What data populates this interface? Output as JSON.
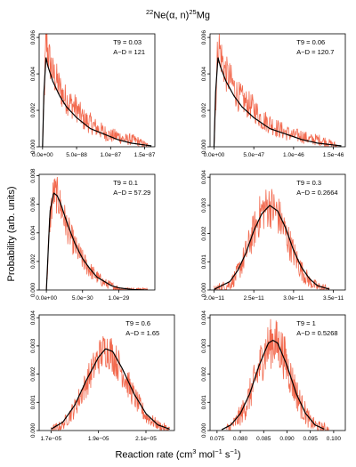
{
  "figure": {
    "title_main": "Ne(α, n)",
    "title_sup1": "22",
    "title_sup2": "25",
    "title_tail": "Mg",
    "ylabel": "Probability (arb. units)",
    "xlabel_main": "Reaction rate (cm",
    "xlabel_sup1": "3",
    "xlabel_mid": " mol",
    "xlabel_sup2": "−1",
    "xlabel_s": " s",
    "xlabel_sup3": "−1",
    "xlabel_end": ")"
  },
  "colors": {
    "histogram": "#f26a4f",
    "curve": "#000000",
    "axis": "#000000"
  },
  "chart_data": [
    {
      "type": "histogram",
      "annotation": [
        "T9 = 0.03",
        "A−D = 121"
      ],
      "xlim": [
        -0.05,
        1.65
      ],
      "ylim": [
        0,
        0.0062
      ],
      "xticks": [
        0,
        0.5,
        1.0,
        1.5
      ],
      "xtick_labels": [
        "0.0e+00",
        "5.0e−88",
        "1.0e−87",
        "1.5e−87"
      ],
      "yticks": [
        0,
        0.002,
        0.004,
        0.006
      ],
      "ytick_labels": [
        "0.000",
        "0.002",
        "0.004",
        "0.006"
      ],
      "hist_points": [
        [
          0.0,
          0.0
        ],
        [
          0.05,
          0.0058
        ],
        [
          0.1,
          0.0048
        ],
        [
          0.15,
          0.004
        ],
        [
          0.2,
          0.0037
        ],
        [
          0.3,
          0.0028
        ],
        [
          0.4,
          0.0024
        ],
        [
          0.5,
          0.0021
        ],
        [
          0.6,
          0.0015
        ],
        [
          0.7,
          0.0013
        ],
        [
          0.8,
          0.001
        ],
        [
          0.9,
          0.0008
        ],
        [
          1.0,
          0.0006
        ],
        [
          1.1,
          0.0006
        ],
        [
          1.2,
          0.0004
        ],
        [
          1.3,
          0.0004
        ],
        [
          1.4,
          0.0003
        ],
        [
          1.5,
          0.0001
        ],
        [
          1.55,
          0.0
        ]
      ],
      "fit_points": [
        [
          0.0,
          0.0
        ],
        [
          0.02,
          0.003
        ],
        [
          0.05,
          0.0049
        ],
        [
          0.08,
          0.0044
        ],
        [
          0.15,
          0.0036
        ],
        [
          0.25,
          0.0028
        ],
        [
          0.35,
          0.0022
        ],
        [
          0.5,
          0.0016
        ],
        [
          0.7,
          0.001
        ],
        [
          0.9,
          0.0007
        ],
        [
          1.1,
          0.0004
        ],
        [
          1.3,
          0.0002
        ],
        [
          1.5,
          0.0001
        ],
        [
          1.6,
          5e-05
        ]
      ],
      "hist_noise": 0.0009
    },
    {
      "type": "histogram",
      "annotation": [
        "T9 = 0.06",
        "A−D = 120.7"
      ],
      "xlim": [
        -0.05,
        1.65
      ],
      "ylim": [
        0,
        0.0062
      ],
      "xticks": [
        0,
        0.5,
        1.0,
        1.5
      ],
      "xtick_labels": [
        "0.0e+00",
        "5.0e−47",
        "1.0e−46",
        "1.5e−46"
      ],
      "yticks": [
        0,
        0.002,
        0.004,
        0.006
      ],
      "ytick_labels": [
        "0.000",
        "0.002",
        "0.004",
        "0.006"
      ],
      "hist_points": [
        [
          0.0,
          0.0
        ],
        [
          0.05,
          0.0058
        ],
        [
          0.1,
          0.0048
        ],
        [
          0.15,
          0.004
        ],
        [
          0.2,
          0.0037
        ],
        [
          0.3,
          0.0028
        ],
        [
          0.4,
          0.0024
        ],
        [
          0.5,
          0.0021
        ],
        [
          0.6,
          0.0015
        ],
        [
          0.7,
          0.0013
        ],
        [
          0.8,
          0.001
        ],
        [
          0.9,
          0.0008
        ],
        [
          1.0,
          0.0006
        ],
        [
          1.1,
          0.0006
        ],
        [
          1.2,
          0.0004
        ],
        [
          1.3,
          0.0004
        ],
        [
          1.4,
          0.0003
        ],
        [
          1.5,
          0.0001
        ],
        [
          1.55,
          0.0
        ]
      ],
      "fit_points": [
        [
          0.0,
          0.0
        ],
        [
          0.02,
          0.003
        ],
        [
          0.05,
          0.0049
        ],
        [
          0.08,
          0.0044
        ],
        [
          0.15,
          0.0036
        ],
        [
          0.25,
          0.0028
        ],
        [
          0.35,
          0.0022
        ],
        [
          0.5,
          0.0016
        ],
        [
          0.7,
          0.001
        ],
        [
          0.9,
          0.0007
        ],
        [
          1.1,
          0.0004
        ],
        [
          1.3,
          0.0002
        ],
        [
          1.5,
          0.0001
        ],
        [
          1.6,
          5e-05
        ]
      ],
      "hist_noise": 0.0009
    },
    {
      "type": "histogram",
      "annotation": [
        "T9 = 0.1",
        "A−D = 57.29"
      ],
      "xlim": [
        -0.1,
        1.5
      ],
      "ylim": [
        0,
        0.0081
      ],
      "xticks": [
        0,
        0.5,
        1.0
      ],
      "xtick_labels": [
        "0.0e+00",
        "5.0e−30",
        "1.0e−29"
      ],
      "yticks": [
        0,
        0.002,
        0.004,
        0.006,
        0.008
      ],
      "ytick_labels": [
        "0.000",
        "0.002",
        "0.004",
        "0.006",
        "0.008"
      ],
      "hist_points": [
        [
          0.0,
          0.0
        ],
        [
          0.05,
          0.005
        ],
        [
          0.1,
          0.0068
        ],
        [
          0.15,
          0.0066
        ],
        [
          0.2,
          0.0058
        ],
        [
          0.3,
          0.0042
        ],
        [
          0.4,
          0.003
        ],
        [
          0.5,
          0.0021
        ],
        [
          0.6,
          0.0014
        ],
        [
          0.7,
          0.0009
        ],
        [
          0.8,
          0.0005
        ],
        [
          0.9,
          0.0003
        ],
        [
          1.0,
          0.0001
        ],
        [
          1.1,
          0.0
        ],
        [
          1.4,
          0.0
        ]
      ],
      "fit_points": [
        [
          0.0,
          0.0
        ],
        [
          0.05,
          0.0055
        ],
        [
          0.1,
          0.0068
        ],
        [
          0.15,
          0.0066
        ],
        [
          0.2,
          0.006
        ],
        [
          0.3,
          0.0045
        ],
        [
          0.4,
          0.0032
        ],
        [
          0.5,
          0.0022
        ],
        [
          0.6,
          0.0015
        ],
        [
          0.7,
          0.0009
        ],
        [
          0.8,
          0.0006
        ],
        [
          0.9,
          0.0003
        ],
        [
          1.0,
          0.00015
        ],
        [
          1.2,
          3e-05
        ],
        [
          1.4,
          0.0
        ]
      ],
      "hist_noise": 0.0009
    },
    {
      "type": "histogram",
      "annotation": [
        "T9 = 0.3",
        "A−D = 0.2664"
      ],
      "xlim": [
        1.95,
        3.65
      ],
      "ylim": [
        0,
        0.0041
      ],
      "xticks": [
        2.0,
        2.5,
        3.0,
        3.5
      ],
      "xtick_labels": [
        "2.0e−11",
        "2.5e−11",
        "3.0e−11",
        "3.5e−11"
      ],
      "yticks": [
        0,
        0.001,
        0.002,
        0.003,
        0.004
      ],
      "ytick_labels": [
        "0.000",
        "0.001",
        "0.002",
        "0.003",
        "0.004"
      ],
      "hist_points": [
        [
          2.0,
          0.0
        ],
        [
          2.2,
          0.0002
        ],
        [
          2.3,
          0.0006
        ],
        [
          2.4,
          0.0013
        ],
        [
          2.5,
          0.0021
        ],
        [
          2.6,
          0.0028
        ],
        [
          2.7,
          0.003
        ],
        [
          2.8,
          0.0027
        ],
        [
          2.9,
          0.002
        ],
        [
          3.0,
          0.0013
        ],
        [
          3.1,
          0.0007
        ],
        [
          3.2,
          0.0003
        ],
        [
          3.3,
          0.0001
        ],
        [
          3.45,
          0.0
        ]
      ],
      "fit_points": [
        [
          2.0,
          2e-05
        ],
        [
          2.2,
          0.0003
        ],
        [
          2.3,
          0.0007
        ],
        [
          2.4,
          0.0013
        ],
        [
          2.5,
          0.0021
        ],
        [
          2.6,
          0.0027
        ],
        [
          2.7,
          0.003
        ],
        [
          2.8,
          0.0028
        ],
        [
          2.9,
          0.0022
        ],
        [
          3.0,
          0.0014
        ],
        [
          3.1,
          0.0008
        ],
        [
          3.2,
          0.0004
        ],
        [
          3.3,
          0.00015
        ],
        [
          3.45,
          3e-05
        ]
      ],
      "hist_noise": 0.0008
    },
    {
      "type": "histogram",
      "annotation": [
        "T9 = 0.6",
        "A−D = 1.65"
      ],
      "xlim": [
        1.65,
        2.22
      ],
      "ylim": [
        0,
        0.0041
      ],
      "xticks": [
        1.7,
        1.9,
        2.1
      ],
      "xtick_labels": [
        "1.7e−05",
        "1.9e−05",
        "2.1e−05"
      ],
      "yticks": [
        0,
        0.001,
        0.002,
        0.003,
        0.004
      ],
      "ytick_labels": [
        "0.000",
        "0.001",
        "0.002",
        "0.003",
        "0.004"
      ],
      "hist_points": [
        [
          1.7,
          0.0
        ],
        [
          1.75,
          0.0002
        ],
        [
          1.8,
          0.0008
        ],
        [
          1.85,
          0.0017
        ],
        [
          1.9,
          0.0026
        ],
        [
          1.93,
          0.0029
        ],
        [
          1.95,
          0.0028
        ],
        [
          2.0,
          0.0021
        ],
        [
          2.05,
          0.0012
        ],
        [
          2.1,
          0.0005
        ],
        [
          2.15,
          0.0002
        ],
        [
          2.2,
          0.0
        ]
      ],
      "fit_points": [
        [
          1.7,
          5e-05
        ],
        [
          1.75,
          0.0003
        ],
        [
          1.8,
          0.0009
        ],
        [
          1.85,
          0.0018
        ],
        [
          1.9,
          0.0026
        ],
        [
          1.93,
          0.0029
        ],
        [
          1.96,
          0.0028
        ],
        [
          2.0,
          0.0022
        ],
        [
          2.05,
          0.0013
        ],
        [
          2.1,
          0.0006
        ],
        [
          2.15,
          0.0002
        ],
        [
          2.2,
          5e-05
        ]
      ],
      "hist_noise": 0.0007
    },
    {
      "type": "histogram",
      "annotation": [
        "T9 = 1",
        "A−D = 0.5268"
      ],
      "xlim": [
        0.0735,
        0.1025
      ],
      "ylim": [
        0,
        0.0041
      ],
      "xticks": [
        0.075,
        0.08,
        0.085,
        0.09,
        0.095,
        0.1
      ],
      "xtick_labels": [
        "0.075",
        "0.080",
        "0.085",
        "0.090",
        "0.095",
        "0.100"
      ],
      "yticks": [
        0,
        0.001,
        0.002,
        0.003,
        0.004
      ],
      "ytick_labels": [
        "0.000",
        "0.001",
        "0.002",
        "0.003",
        "0.004"
      ],
      "hist_points": [
        [
          0.077,
          0.0
        ],
        [
          0.079,
          0.0003
        ],
        [
          0.081,
          0.0008
        ],
        [
          0.083,
          0.0017
        ],
        [
          0.085,
          0.0027
        ],
        [
          0.087,
          0.0032
        ],
        [
          0.089,
          0.0028
        ],
        [
          0.091,
          0.0018
        ],
        [
          0.093,
          0.0009
        ],
        [
          0.095,
          0.0003
        ],
        [
          0.097,
          0.0001
        ],
        [
          0.099,
          0.0
        ]
      ],
      "fit_points": [
        [
          0.076,
          3e-05
        ],
        [
          0.078,
          0.0002
        ],
        [
          0.08,
          0.0006
        ],
        [
          0.082,
          0.0013
        ],
        [
          0.084,
          0.0023
        ],
        [
          0.086,
          0.0031
        ],
        [
          0.087,
          0.0032
        ],
        [
          0.088,
          0.0031
        ],
        [
          0.09,
          0.0023
        ],
        [
          0.092,
          0.0013
        ],
        [
          0.094,
          0.0006
        ],
        [
          0.096,
          0.0002
        ],
        [
          0.098,
          5e-05
        ]
      ],
      "hist_noise": 0.0009
    }
  ]
}
